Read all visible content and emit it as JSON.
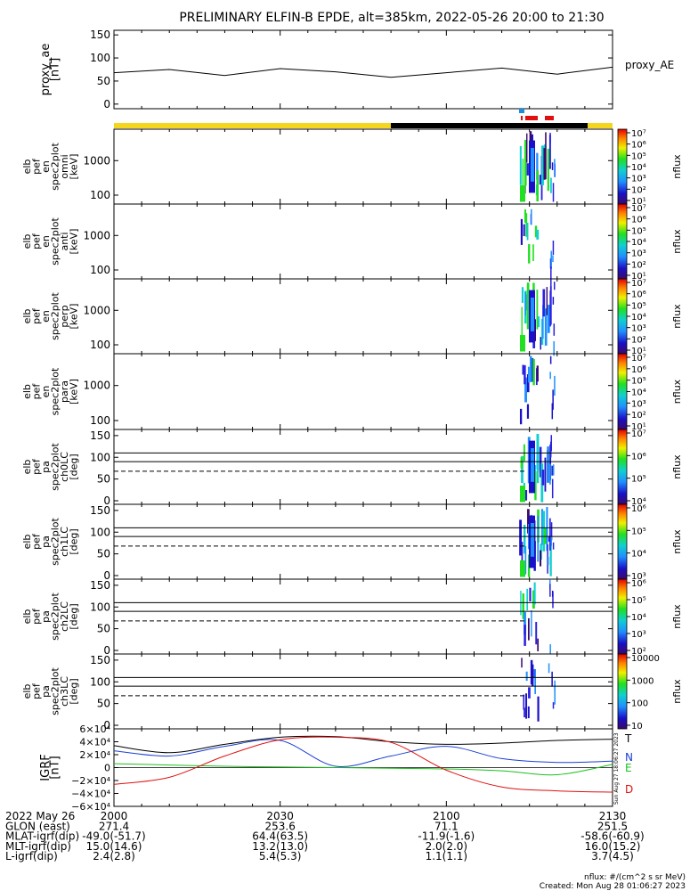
{
  "title": "PRELIMINARY ELFIN-B EPDE, alt=385km, 2022-05-26 20:00 to 21:30",
  "chart_data": [
    {
      "type": "line",
      "id": "proxy_ae",
      "ylabel": [
        "proxy_ae",
        "[nT]"
      ],
      "legend": "proxy_AE",
      "yticks": [
        "0",
        "50",
        "100",
        "150"
      ],
      "ylim": [
        -10,
        160
      ],
      "x_minutes": [
        0,
        10,
        20,
        30,
        40,
        50,
        60,
        70,
        80,
        90
      ],
      "values": [
        68,
        75,
        62,
        77,
        70,
        58,
        68,
        78,
        65,
        80
      ]
    },
    {
      "type": "heatmap",
      "id": "en_omni",
      "ylabel": [
        "elb",
        "pef",
        "en",
        "spec2plot",
        "omni",
        "[keV]"
      ],
      "yticks": [
        "100",
        "1000"
      ],
      "zlabel": "nflux",
      "zticks": [
        "10¹",
        "10²",
        "10³",
        "10⁴",
        "10⁵",
        "10⁶",
        "10⁷"
      ]
    },
    {
      "type": "heatmap",
      "id": "en_anti",
      "ylabel": [
        "elb",
        "pef",
        "en",
        "spec2plot",
        "anti",
        "[keV]"
      ],
      "yticks": [
        "100",
        "1000"
      ],
      "zlabel": "nflux",
      "zticks": [
        "10¹",
        "10²",
        "10³",
        "10⁴",
        "10⁵",
        "10⁶",
        "10⁷"
      ]
    },
    {
      "type": "heatmap",
      "id": "en_perp",
      "ylabel": [
        "elb",
        "pef",
        "en",
        "spec2plot",
        "perp",
        "[keV]"
      ],
      "yticks": [
        "100",
        "1000"
      ],
      "zlabel": "nflux",
      "zticks": [
        "10¹",
        "10²",
        "10³",
        "10⁴",
        "10⁵",
        "10⁶",
        "10⁷"
      ]
    },
    {
      "type": "heatmap",
      "id": "en_para",
      "ylabel": [
        "elb",
        "pef",
        "en",
        "spec2plot",
        "para",
        "[keV]"
      ],
      "yticks": [
        "100",
        "1000"
      ],
      "zlabel": "nflux",
      "zticks": [
        "10¹",
        "10²",
        "10³",
        "10⁴",
        "10⁵",
        "10⁶",
        "10⁷"
      ]
    },
    {
      "type": "heatmap",
      "id": "pa_ch0",
      "ylabel": [
        "elb",
        "pef",
        "pa",
        "spec2plot",
        "ch0LC",
        "[deg]"
      ],
      "yticks": [
        "0",
        "50",
        "100",
        "150"
      ],
      "zlabel": "nflux",
      "zticks": [
        "10⁴",
        "10⁵",
        "10⁶",
        "10⁷"
      ]
    },
    {
      "type": "heatmap",
      "id": "pa_ch1",
      "ylabel": [
        "elb",
        "pef",
        "pa",
        "spec2plot",
        "ch1LC",
        "[deg]"
      ],
      "yticks": [
        "0",
        "50",
        "100",
        "150"
      ],
      "zlabel": "nflux",
      "zticks": [
        "10³",
        "10⁴",
        "10⁵",
        "10⁶"
      ]
    },
    {
      "type": "heatmap",
      "id": "pa_ch2",
      "ylabel": [
        "elb",
        "pef",
        "pa",
        "spec2plot",
        "ch2LC",
        "[deg]"
      ],
      "yticks": [
        "0",
        "50",
        "100",
        "150"
      ],
      "zlabel": "nflux",
      "zticks": [
        "10²",
        "10³",
        "10⁴",
        "10⁵",
        "10⁶"
      ]
    },
    {
      "type": "heatmap",
      "id": "pa_ch3",
      "ylabel": [
        "elb",
        "pef",
        "pa",
        "spec2plot",
        "ch3LC",
        "[deg]"
      ],
      "yticks": [
        "0",
        "50",
        "100",
        "150"
      ],
      "zlabel": "nflux",
      "zticks": [
        "10",
        "100",
        "1000",
        "10000"
      ]
    },
    {
      "type": "line",
      "id": "igrf",
      "ylabel": [
        "IGRF",
        "[nT]"
      ],
      "yticks": [
        "−6×10⁴",
        "−4×10⁴",
        "−2×10⁴",
        "0",
        "2×10⁴",
        "4×10⁴",
        "6×10⁴"
      ],
      "ylim": [
        -60000,
        60000
      ],
      "side_note": "Sun Aug 27 18:06:27 2023",
      "x_minutes": [
        0,
        10,
        20,
        30,
        40,
        50,
        60,
        70,
        80,
        90
      ],
      "series": [
        {
          "name": "T",
          "color": "#000000",
          "values": [
            34000,
            23000,
            36000,
            47000,
            48000,
            40000,
            36000,
            38000,
            42000,
            44000
          ]
        },
        {
          "name": "N",
          "color": "#1a3fd4",
          "values": [
            26000,
            18000,
            33000,
            42000,
            2000,
            18000,
            33000,
            14000,
            8000,
            10000
          ]
        },
        {
          "name": "E",
          "color": "#1cc11c",
          "values": [
            6000,
            4000,
            2000,
            1000,
            0,
            -1000,
            -2000,
            -5000,
            -11000,
            5000
          ]
        },
        {
          "name": "D",
          "color": "#e01010",
          "values": [
            -26000,
            -15000,
            18000,
            43000,
            47000,
            39000,
            -4000,
            -30000,
            -36000,
            -38000
          ]
        }
      ]
    }
  ],
  "xaxis": {
    "rows": [
      {
        "label": "2022 May 26",
        "values": [
          "2000",
          "2030",
          "2100",
          "2130"
        ]
      },
      {
        "label": "GLON (east)",
        "values": [
          "271.4",
          "253.6",
          "71.1",
          "251.5"
        ]
      },
      {
        "label": "MLAT-igrf(dip)",
        "values": [
          "-49.0(-51.7)",
          "64.4(63.5)",
          "-11.9(-1.6)",
          "-58.6(-60.9)"
        ]
      },
      {
        "label": "MLT-igrf(dip)",
        "values": [
          "15.0(14.6)",
          "13.2(13.0)",
          "2.0(2.0)",
          "16.0(15.2)"
        ]
      },
      {
        "label": "L-igrf(dip)",
        "values": [
          "2.4(2.8)",
          "5.4(5.3)",
          "1.1(1.1)",
          "3.7(4.5)"
        ]
      }
    ]
  },
  "footer": {
    "units": "nflux: #/(cm^2 s sr MeV)",
    "created": "Created: Mon Aug 28 01:06:27 2023"
  },
  "colors": {
    "sunlit": "#f5d61e",
    "eclipse": "#000000",
    "science_zone": "#e01010",
    "fast_survey": "#1a8ee0"
  }
}
